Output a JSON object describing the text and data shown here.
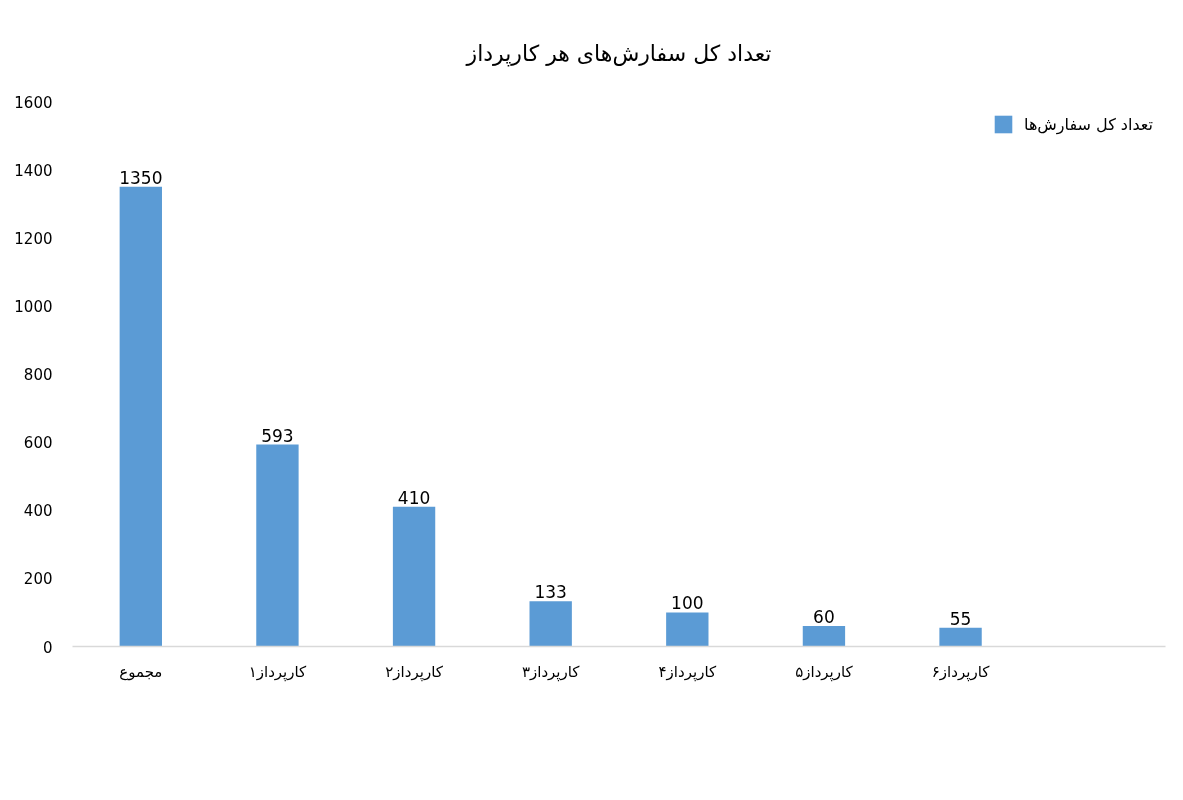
{
  "chart_data": {
    "type": "bar",
    "title": "تعداد کل سفارش‌های هر کارپرداز",
    "categories": [
      "مجموع",
      "کارپرداز۱",
      "کارپرداز۲",
      "کارپرداز۳",
      "کارپرداز۴",
      "کارپرداز۵",
      "کارپرداز۶",
      null
    ],
    "series": [
      {
        "name": "تعداد کل سفارش‌ها",
        "color": "#5b9bd5",
        "values": [
          1350,
          593,
          410,
          133,
          100,
          60,
          55,
          null
        ]
      }
    ],
    "ylim": [
      0,
      1600
    ],
    "yticks": [
      0,
      200,
      400,
      600,
      800,
      1000,
      1200,
      1400,
      1600
    ],
    "data_labels": true,
    "legend": "top right",
    "grid": false
  }
}
